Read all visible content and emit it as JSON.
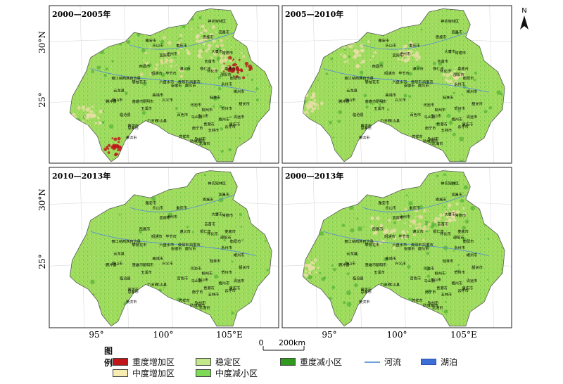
{
  "panels": [
    {
      "title": "2000—2005年",
      "variant": "heavy"
    },
    {
      "title": "2005—2010年",
      "variant": "mixed"
    },
    {
      "title": "2010—2013年",
      "variant": "light"
    },
    {
      "title": "2000—2013年",
      "variant": "mixed2"
    }
  ],
  "axis": {
    "lat_labels": [
      "30°N",
      "25°"
    ],
    "lon_labels": [
      "95°",
      "100°",
      "105°E"
    ]
  },
  "north_label": "N",
  "scale": {
    "zero": "0",
    "label": "200km"
  },
  "legend": {
    "title": "图例",
    "items": [
      {
        "label": "重度增加区",
        "color": "#c0151b",
        "kind": "patch"
      },
      {
        "label": "中度增加区",
        "color": "#f7edb0",
        "kind": "patch"
      },
      {
        "label": "稳定区",
        "color": "#c3e88a",
        "kind": "patch"
      },
      {
        "label": "中度减小区",
        "color": "#7ed957",
        "kind": "patch"
      },
      {
        "label": "重度减小区",
        "color": "#2f9a1e",
        "kind": "patch"
      },
      {
        "label": "河流",
        "color": "#6fa0d8",
        "kind": "line"
      },
      {
        "label": "湖泊",
        "color": "#3b6fd6",
        "kind": "lake"
      }
    ]
  },
  "cities": [
    {
      "name": "神农架林区",
      "lon": 110.5,
      "lat": 31.6
    },
    {
      "name": "宜昌市",
      "lon": 111.3,
      "lat": 30.7
    },
    {
      "name": "恩施市",
      "lon": 109.5,
      "lat": 30.3
    },
    {
      "name": "重庆市",
      "lon": 106.5,
      "lat": 29.6
    },
    {
      "name": "常德市",
      "lon": 111.7,
      "lat": 29.0
    },
    {
      "name": "大庸市",
      "lon": 110.5,
      "lat": 29.1
    },
    {
      "name": "雅安市",
      "lon": 103.0,
      "lat": 30.0
    },
    {
      "name": "乐山市",
      "lon": 103.8,
      "lat": 29.6
    },
    {
      "name": "宜宾市",
      "lon": 104.6,
      "lat": 28.8
    },
    {
      "name": "吉首市",
      "lon": 109.7,
      "lat": 28.3
    },
    {
      "name": "泸州市",
      "lon": 105.4,
      "lat": 28.9
    },
    {
      "name": "遵义市",
      "lon": 106.9,
      "lat": 27.7
    },
    {
      "name": "铜仁市",
      "lon": 109.2,
      "lat": 27.7
    },
    {
      "name": "娄底市",
      "lon": 112.0,
      "lat": 27.7
    },
    {
      "name": "西昌市",
      "lon": 102.3,
      "lat": 27.9
    },
    {
      "name": "昭通市",
      "lon": 103.7,
      "lat": 27.3
    },
    {
      "name": "怀化市",
      "lon": 110.0,
      "lat": 27.5
    },
    {
      "name": "丽江纳西族自治县",
      "lon": 100.2,
      "lat": 26.9
    },
    {
      "name": "攀枝花市",
      "lon": 101.7,
      "lat": 26.6
    },
    {
      "name": "毕节市",
      "lon": 105.3,
      "lat": 27.3
    },
    {
      "name": "贵阳市",
      "lon": 106.7,
      "lat": 26.6
    },
    {
      "name": "凯里市",
      "lon": 108.0,
      "lat": 26.6
    },
    {
      "name": "邵阳市",
      "lon": 111.5,
      "lat": 27.2
    },
    {
      "name": "衡阳市",
      "lon": 112.6,
      "lat": 26.9
    },
    {
      "name": "六盘水市",
      "lon": 104.8,
      "lat": 26.6
    },
    {
      "name": "安顺市",
      "lon": 105.9,
      "lat": 26.3
    },
    {
      "name": "都匀市",
      "lon": 107.5,
      "lat": 26.3
    },
    {
      "name": "永州市",
      "lon": 111.6,
      "lat": 26.4
    },
    {
      "name": "郴州市",
      "lon": 113.0,
      "lat": 25.8
    },
    {
      "name": "曲靖市",
      "lon": 103.8,
      "lat": 25.5
    },
    {
      "name": "昆明市",
      "lon": 102.7,
      "lat": 25.0
    },
    {
      "name": "云龙县",
      "lon": 99.4,
      "lat": 25.9
    },
    {
      "name": "保山市",
      "lon": 99.2,
      "lat": 25.1
    },
    {
      "name": "腾冲县",
      "lon": 98.5,
      "lat": 25.0
    },
    {
      "name": "临沧县",
      "lon": 100.1,
      "lat": 23.9
    },
    {
      "name": "楚雄市",
      "lon": 101.5,
      "lat": 25.0
    },
    {
      "name": "玉溪市",
      "lon": 102.5,
      "lat": 24.4
    },
    {
      "name": "兴义市",
      "lon": 104.9,
      "lat": 25.1
    },
    {
      "name": "河池市",
      "lon": 108.1,
      "lat": 24.7
    },
    {
      "name": "柳州市",
      "lon": 109.4,
      "lat": 24.3
    },
    {
      "name": "桂林市",
      "lon": 110.3,
      "lat": 25.3
    },
    {
      "name": "贺州市",
      "lon": 111.6,
      "lat": 24.4
    },
    {
      "name": "清远市",
      "lon": 113.0,
      "lat": 23.7
    },
    {
      "name": "韶关市",
      "lon": 113.6,
      "lat": 24.8
    },
    {
      "name": "普洱市",
      "lon": 101.0,
      "lat": 23.0
    },
    {
      "name": "个旧市",
      "lon": 103.2,
      "lat": 23.4
    },
    {
      "name": "文山县",
      "lon": 104.2,
      "lat": 23.4
    },
    {
      "name": "百色市",
      "lon": 106.6,
      "lat": 23.9
    },
    {
      "name": "合山市",
      "lon": 108.9,
      "lat": 23.8
    },
    {
      "name": "贵港市",
      "lon": 109.6,
      "lat": 23.1
    },
    {
      "name": "梧州市",
      "lon": 111.3,
      "lat": 23.5
    },
    {
      "name": "肇庆市",
      "lon": 112.5,
      "lat": 23.1
    },
    {
      "name": "云浮市",
      "lon": 112.0,
      "lat": 22.9
    },
    {
      "name": "马山县",
      "lon": 108.2,
      "lat": 23.7
    },
    {
      "name": "南宁市",
      "lon": 108.3,
      "lat": 22.8
    },
    {
      "name": "玉林市",
      "lon": 110.1,
      "lat": 22.6
    },
    {
      "name": "钦州市",
      "lon": 108.6,
      "lat": 21.9
    },
    {
      "name": "北海市",
      "lon": 109.1,
      "lat": 21.5
    },
    {
      "name": "防城港市",
      "lon": 108.3,
      "lat": 21.7
    },
    {
      "name": "凭祥市",
      "lon": 106.8,
      "lat": 22.1
    },
    {
      "name": "景洪市",
      "lon": 100.8,
      "lat": 22.0
    },
    {
      "name": "思茅市",
      "lon": 101.0,
      "lat": 22.8
    }
  ]
}
